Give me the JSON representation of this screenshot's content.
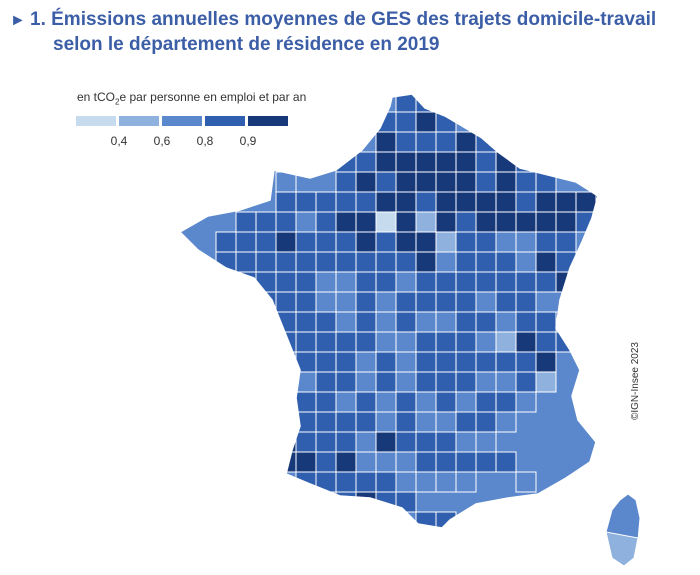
{
  "title": {
    "marker": "►",
    "line1": "1. Émissions annuelles moyennes de GES des trajets domicile-travail",
    "line2": "selon le département de résidence en 2019"
  },
  "legend": {
    "unit_prefix": "en tCO",
    "unit_sub": "2",
    "unit_suffix": "e par personne en emploi et par an",
    "classes": [
      {
        "color": "#c6dcee"
      },
      {
        "color": "#8fb1de"
      },
      {
        "color": "#5b87cd"
      },
      {
        "color": "#2f5fae"
      },
      {
        "color": "#17397a"
      }
    ],
    "ticks": [
      "0,4",
      "0,6",
      "0,8",
      "0,9"
    ]
  },
  "credit": "©IGN-Insee 2023",
  "colors": {
    "title": "#3b5ea6",
    "border": "#ffffff",
    "outline": "#ffffff"
  }
}
